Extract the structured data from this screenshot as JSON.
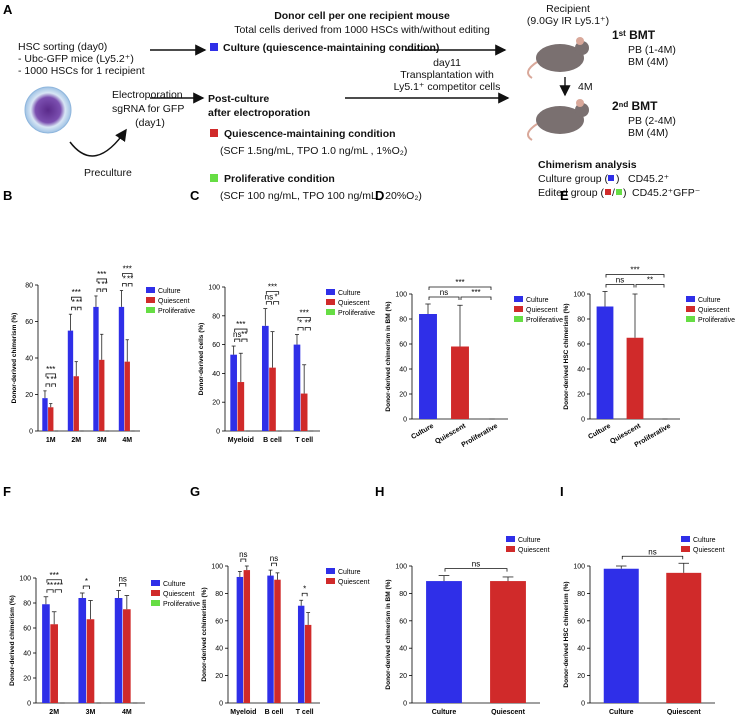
{
  "schematic": {
    "panel": "A",
    "sorting": [
      "HSC sorting (day0)",
      "- Ubc-GFP mice (Ly5.2⁺)",
      "- 1000 HSCs for 1 recipient"
    ],
    "electroporation": [
      "Electroporation",
      "sgRNA for GFP",
      "(day1)"
    ],
    "preculture": "Preculture",
    "donor": [
      "Donor cell per one recipient mouse",
      "Total cells derived from 1000 HSCs with/without editing"
    ],
    "culture": "Culture (quiescence-maintaining condition)",
    "post_culture": [
      "Post-culture",
      "after electroporation"
    ],
    "quiescent": [
      "Quiescence-maintaining condition",
      "(SCF 1.5ng/mL, TPO 1.0 ng/mL , 1%O₂)"
    ],
    "proliferative": [
      "Proliferative condition",
      "(SCF 100 ng/mL, TPO 100 ng/mL , 20%O₂)"
    ],
    "transplant": [
      "day11",
      "Transplantation with",
      "Ly5.1⁺ competitor cells"
    ],
    "recipient": [
      "Recipient",
      "(9.0Gy IR Ly5.1⁺)"
    ],
    "first_bmt": [
      "1ˢᵗ BMT",
      "PB (1-4M)",
      "BM (4M)"
    ],
    "interval": "4M",
    "second_bmt": [
      "2ⁿᵈ BMT",
      "PB (2-4M)",
      "BM (4M)"
    ],
    "analysis": {
      "title": "Chimerism analysis",
      "culture_group": "Culture group (",
      "close_paren": ")",
      "culture_marker": "CD45.2⁺",
      "edited_group": "Edited group (",
      "slash": "/",
      "edited_marker": "CD45.2⁺GFP⁻"
    }
  },
  "chart_data": [
    {
      "type": "grouped_bar",
      "panel": "B",
      "ylabel": "Donor-derived chimerism (%)",
      "legend": "right",
      "categories": [
        "1M",
        "2M",
        "3M",
        "4M"
      ],
      "series": [
        {
          "name": "Culture",
          "color": "#2f2fe8",
          "values": [
            18,
            55,
            68,
            68
          ],
          "errors": [
            4,
            9,
            6,
            9
          ]
        },
        {
          "name": "Quiescent",
          "color": "#d02a2a",
          "values": [
            13,
            30,
            39,
            38
          ],
          "errors": [
            2,
            8,
            14,
            12
          ]
        },
        {
          "name": "Proliferative",
          "color": "#66dd44",
          "values": [
            0,
            0,
            0,
            0
          ],
          "errors": [
            0,
            0,
            0,
            0
          ]
        }
      ],
      "ylim": [
        0,
        80
      ],
      "yticks": [
        0,
        20,
        40,
        60,
        80
      ],
      "comparisons": [
        [
          {
            "groups": [
              0,
              2
            ],
            "label": "***"
          },
          {
            "groups": [
              0,
              1
            ],
            "label": "*"
          },
          {
            "groups": [
              1,
              2
            ],
            "label": "**"
          }
        ],
        [
          {
            "groups": [
              0,
              2
            ],
            "label": "***"
          },
          {
            "groups": [
              0,
              1
            ],
            "label": "*"
          },
          {
            "groups": [
              1,
              2
            ],
            "label": "**"
          }
        ],
        [
          {
            "groups": [
              0,
              2
            ],
            "label": "***"
          },
          {
            "groups": [
              0,
              1
            ],
            "label": "*"
          },
          {
            "groups": [
              1,
              2
            ],
            "label": "**"
          }
        ],
        [
          {
            "groups": [
              0,
              2
            ],
            "label": "***"
          },
          {
            "groups": [
              0,
              1
            ],
            "label": "*"
          },
          {
            "groups": [
              1,
              2
            ],
            "label": "**"
          }
        ]
      ]
    },
    {
      "type": "grouped_bar",
      "panel": "C",
      "ylabel": "Donor-derived cells (%)",
      "legend": "right",
      "categories": [
        "Myeloid",
        "B cell",
        "T cell"
      ],
      "series": [
        {
          "name": "Culture",
          "color": "#2f2fe8",
          "values": [
            53,
            73,
            60
          ],
          "errors": [
            6,
            12,
            7
          ]
        },
        {
          "name": "Quiescent",
          "color": "#d02a2a",
          "values": [
            34,
            44,
            26
          ],
          "errors": [
            20,
            25,
            20
          ]
        },
        {
          "name": "Proliferative",
          "color": "#66dd44",
          "values": [
            0,
            0,
            0
          ],
          "errors": [
            0,
            0,
            0
          ]
        }
      ],
      "ylim": [
        0,
        100
      ],
      "yticks": [
        0,
        20,
        40,
        60,
        80,
        100
      ],
      "comparisons": [
        [
          {
            "groups": [
              0,
              2
            ],
            "label": "***"
          },
          {
            "groups": [
              0,
              1
            ],
            "label": "ns"
          },
          {
            "groups": [
              1,
              2
            ],
            "label": "**"
          }
        ],
        [
          {
            "groups": [
              0,
              2
            ],
            "label": "***"
          },
          {
            "groups": [
              0,
              1
            ],
            "label": "ns"
          },
          {
            "groups": [
              1,
              2
            ],
            "label": "*"
          }
        ],
        [
          {
            "groups": [
              0,
              2
            ],
            "label": "***"
          },
          {
            "groups": [
              0,
              1
            ],
            "label": "*"
          },
          {
            "groups": [
              1,
              2
            ],
            "label": "**"
          }
        ]
      ]
    },
    {
      "type": "bar",
      "panel": "D",
      "ylabel": "Donor-derived chimerism in BM (%)",
      "legend": "right",
      "categories": [
        "Culture",
        "Quiescent",
        "Proliferative"
      ],
      "colors": [
        "#2f2fe8",
        "#d02a2a",
        "#66dd44"
      ],
      "values": [
        84,
        58,
        0
      ],
      "errors": [
        8,
        33,
        0
      ],
      "ylim": [
        0,
        100
      ],
      "yticks": [
        0,
        20,
        40,
        60,
        80,
        100
      ],
      "comparisons": [
        {
          "groups": [
            0,
            2
          ],
          "label": "***"
        },
        {
          "groups": [
            0,
            1
          ],
          "label": "ns"
        },
        {
          "groups": [
            1,
            2
          ],
          "label": "***"
        }
      ]
    },
    {
      "type": "bar",
      "panel": "E",
      "ylabel": "Donor-derived HSC chimerism (%)",
      "legend": "right",
      "categories": [
        "Culture",
        "Quiescent",
        "Proliferative"
      ],
      "colors": [
        "#2f2fe8",
        "#d02a2a",
        "#66dd44"
      ],
      "values": [
        90,
        65,
        0
      ],
      "errors": [
        12,
        35,
        0
      ],
      "ylim": [
        0,
        100
      ],
      "yticks": [
        0,
        20,
        40,
        60,
        80,
        100
      ],
      "comparisons": [
        {
          "groups": [
            0,
            1
          ],
          "label": "ns"
        },
        {
          "groups": [
            0,
            2
          ],
          "label": "***"
        },
        {
          "groups": [
            1,
            2
          ],
          "label": "**"
        }
      ]
    },
    {
      "type": "grouped_bar",
      "panel": "F",
      "ylabel": "Donor-derived chimerism (%)",
      "legend": "right",
      "categories": [
        "2M",
        "3M",
        "4M"
      ],
      "series": [
        {
          "name": "Culture",
          "color": "#2f2fe8",
          "values": [
            79,
            84,
            84
          ],
          "errors": [
            6,
            4,
            6
          ]
        },
        {
          "name": "Quiescent",
          "color": "#d02a2a",
          "values": [
            63,
            67,
            75
          ],
          "errors": [
            10,
            15,
            11
          ]
        },
        {
          "name": "Proliferative",
          "color": "#66dd44",
          "values": [
            0,
            0,
            0
          ],
          "errors": [
            0,
            0,
            0
          ]
        }
      ],
      "ylim": [
        0,
        100
      ],
      "yticks": [
        0,
        20,
        40,
        60,
        80,
        100
      ],
      "comparisons": [
        [
          {
            "groups": [
              0,
              2
            ],
            "label": "***"
          },
          {
            "groups": [
              0,
              1
            ],
            "label": "**"
          },
          {
            "groups": [
              1,
              2
            ],
            "label": "***"
          }
        ],
        [
          {
            "groups": [
              0,
              1
            ],
            "label": "*"
          }
        ],
        [
          {
            "groups": [
              0,
              1
            ],
            "label": "ns"
          }
        ]
      ]
    },
    {
      "type": "grouped_bar",
      "panel": "G",
      "ylabel": "Donor-derived cchimerism (%)",
      "legend": "right",
      "categories": [
        "Myeloid",
        "B cell",
        "T cell"
      ],
      "series": [
        {
          "name": "Culture",
          "color": "#2f2fe8",
          "values": [
            92,
            93,
            71
          ],
          "errors": [
            4,
            4,
            4
          ]
        },
        {
          "name": "Quiescent",
          "color": "#d02a2a",
          "values": [
            97,
            90,
            57
          ],
          "errors": [
            3,
            5,
            9
          ]
        }
      ],
      "ylim": [
        0,
        100
      ],
      "yticks": [
        0,
        20,
        40,
        60,
        80,
        100
      ],
      "comparisons": [
        [
          {
            "groups": [
              0,
              1
            ],
            "label": "ns"
          }
        ],
        [
          {
            "groups": [
              0,
              1
            ],
            "label": "ns"
          }
        ],
        [
          {
            "groups": [
              0,
              1
            ],
            "label": "*"
          }
        ]
      ]
    },
    {
      "type": "bar",
      "panel": "H",
      "ylabel": "Donor-derived chimerism in BM (%)",
      "legend": "upper right",
      "categories": [
        "Culture",
        "Quiescent"
      ],
      "colors": [
        "#2f2fe8",
        "#d02a2a"
      ],
      "values": [
        89,
        89
      ],
      "errors": [
        4,
        3
      ],
      "ylim": [
        0,
        100
      ],
      "yticks": [
        0,
        20,
        40,
        60,
        80,
        100
      ],
      "comparisons": [
        {
          "groups": [
            0,
            1
          ],
          "label": "ns"
        }
      ]
    },
    {
      "type": "bar",
      "panel": "I",
      "ylabel": "Donor-derived HSC chimerism (%)",
      "legend": "upper right",
      "categories": [
        "Culture",
        "Quiescent"
      ],
      "colors": [
        "#2f2fe8",
        "#d02a2a"
      ],
      "values": [
        98,
        95
      ],
      "errors": [
        2,
        7
      ],
      "ylim": [
        0,
        100
      ],
      "yticks": [
        0,
        20,
        40,
        60,
        80,
        100
      ],
      "comparisons": [
        {
          "groups": [
            0,
            1
          ],
          "label": "ns"
        }
      ]
    }
  ]
}
